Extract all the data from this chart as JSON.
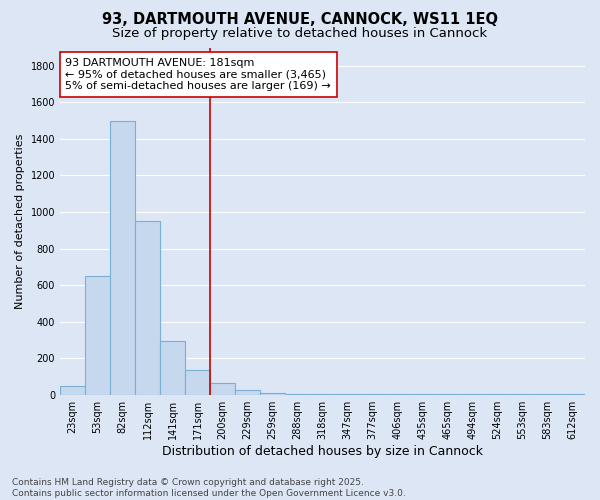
{
  "title": "93, DARTMOUTH AVENUE, CANNOCK, WS11 1EQ",
  "subtitle": "Size of property relative to detached houses in Cannock",
  "xlabel": "Distribution of detached houses by size in Cannock",
  "ylabel": "Number of detached properties",
  "categories": [
    "23sqm",
    "53sqm",
    "82sqm",
    "112sqm",
    "141sqm",
    "171sqm",
    "200sqm",
    "229sqm",
    "259sqm",
    "288sqm",
    "318sqm",
    "347sqm",
    "377sqm",
    "406sqm",
    "435sqm",
    "465sqm",
    "494sqm",
    "524sqm",
    "553sqm",
    "583sqm",
    "612sqm"
  ],
  "values": [
    45,
    650,
    1500,
    950,
    295,
    135,
    65,
    25,
    10,
    5,
    5,
    5,
    5,
    5,
    2,
    2,
    2,
    2,
    2,
    2,
    2
  ],
  "bar_color": "#c5d8ee",
  "bar_edge_color": "#7bafd4",
  "bar_linewidth": 0.8,
  "vline_color": "#cc0000",
  "vline_linewidth": 1.2,
  "vline_pos": 5.5,
  "annotation_text": "93 DARTMOUTH AVENUE: 181sqm\n← 95% of detached houses are smaller (3,465)\n5% of semi-detached houses are larger (169) →",
  "annotation_box_facecolor": "#ffffff",
  "annotation_box_edgecolor": "#cc0000",
  "ylim_max": 1900,
  "yticks": [
    0,
    200,
    400,
    600,
    800,
    1000,
    1200,
    1400,
    1600,
    1800
  ],
  "bg_color": "#dce6f5",
  "plot_bg_color": "#dce6f5",
  "grid_color": "#ffffff",
  "title_fontsize": 10.5,
  "subtitle_fontsize": 9.5,
  "xlabel_fontsize": 9,
  "ylabel_fontsize": 8,
  "tick_fontsize": 7,
  "annotation_fontsize": 8,
  "footer_fontsize": 6.5,
  "footer_line1": "Contains HM Land Registry data © Crown copyright and database right 2025.",
  "footer_line2": "Contains public sector information licensed under the Open Government Licence v3.0."
}
